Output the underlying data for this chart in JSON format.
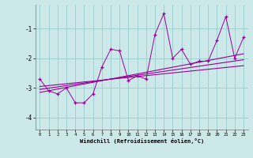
{
  "xlabel": "Windchill (Refroidissement éolien,°C)",
  "x_data": [
    0,
    1,
    2,
    3,
    4,
    5,
    6,
    7,
    8,
    9,
    10,
    11,
    12,
    13,
    14,
    15,
    16,
    17,
    18,
    19,
    20,
    21,
    22,
    23
  ],
  "line1_y": [
    -2.7,
    -3.1,
    -3.2,
    -3.0,
    -3.5,
    -3.5,
    -3.2,
    -2.3,
    -1.7,
    -1.75,
    -2.75,
    -2.6,
    -2.7,
    -1.2,
    -0.5,
    -2.0,
    -1.7,
    -2.2,
    -2.1,
    -2.1,
    -1.4,
    -0.6,
    -2.0,
    -1.3
  ],
  "trend1_x": [
    0,
    23
  ],
  "trend1_y": [
    -3.15,
    -1.85
  ],
  "trend2_x": [
    0,
    23
  ],
  "trend2_y": [
    -3.05,
    -2.05
  ],
  "trend3_x": [
    0,
    23
  ],
  "trend3_y": [
    -2.95,
    -2.25
  ],
  "bg_color": "#cce8e8",
  "line_color": "#990099",
  "grid_color": "#99cccc",
  "xlim": [
    -0.5,
    23.5
  ],
  "ylim": [
    -4.4,
    -0.2
  ],
  "yticks": [
    -4,
    -3,
    -2,
    -1
  ],
  "xticks": [
    0,
    1,
    2,
    3,
    4,
    5,
    6,
    7,
    8,
    9,
    10,
    11,
    12,
    13,
    14,
    15,
    16,
    17,
    18,
    19,
    20,
    21,
    22,
    23
  ]
}
